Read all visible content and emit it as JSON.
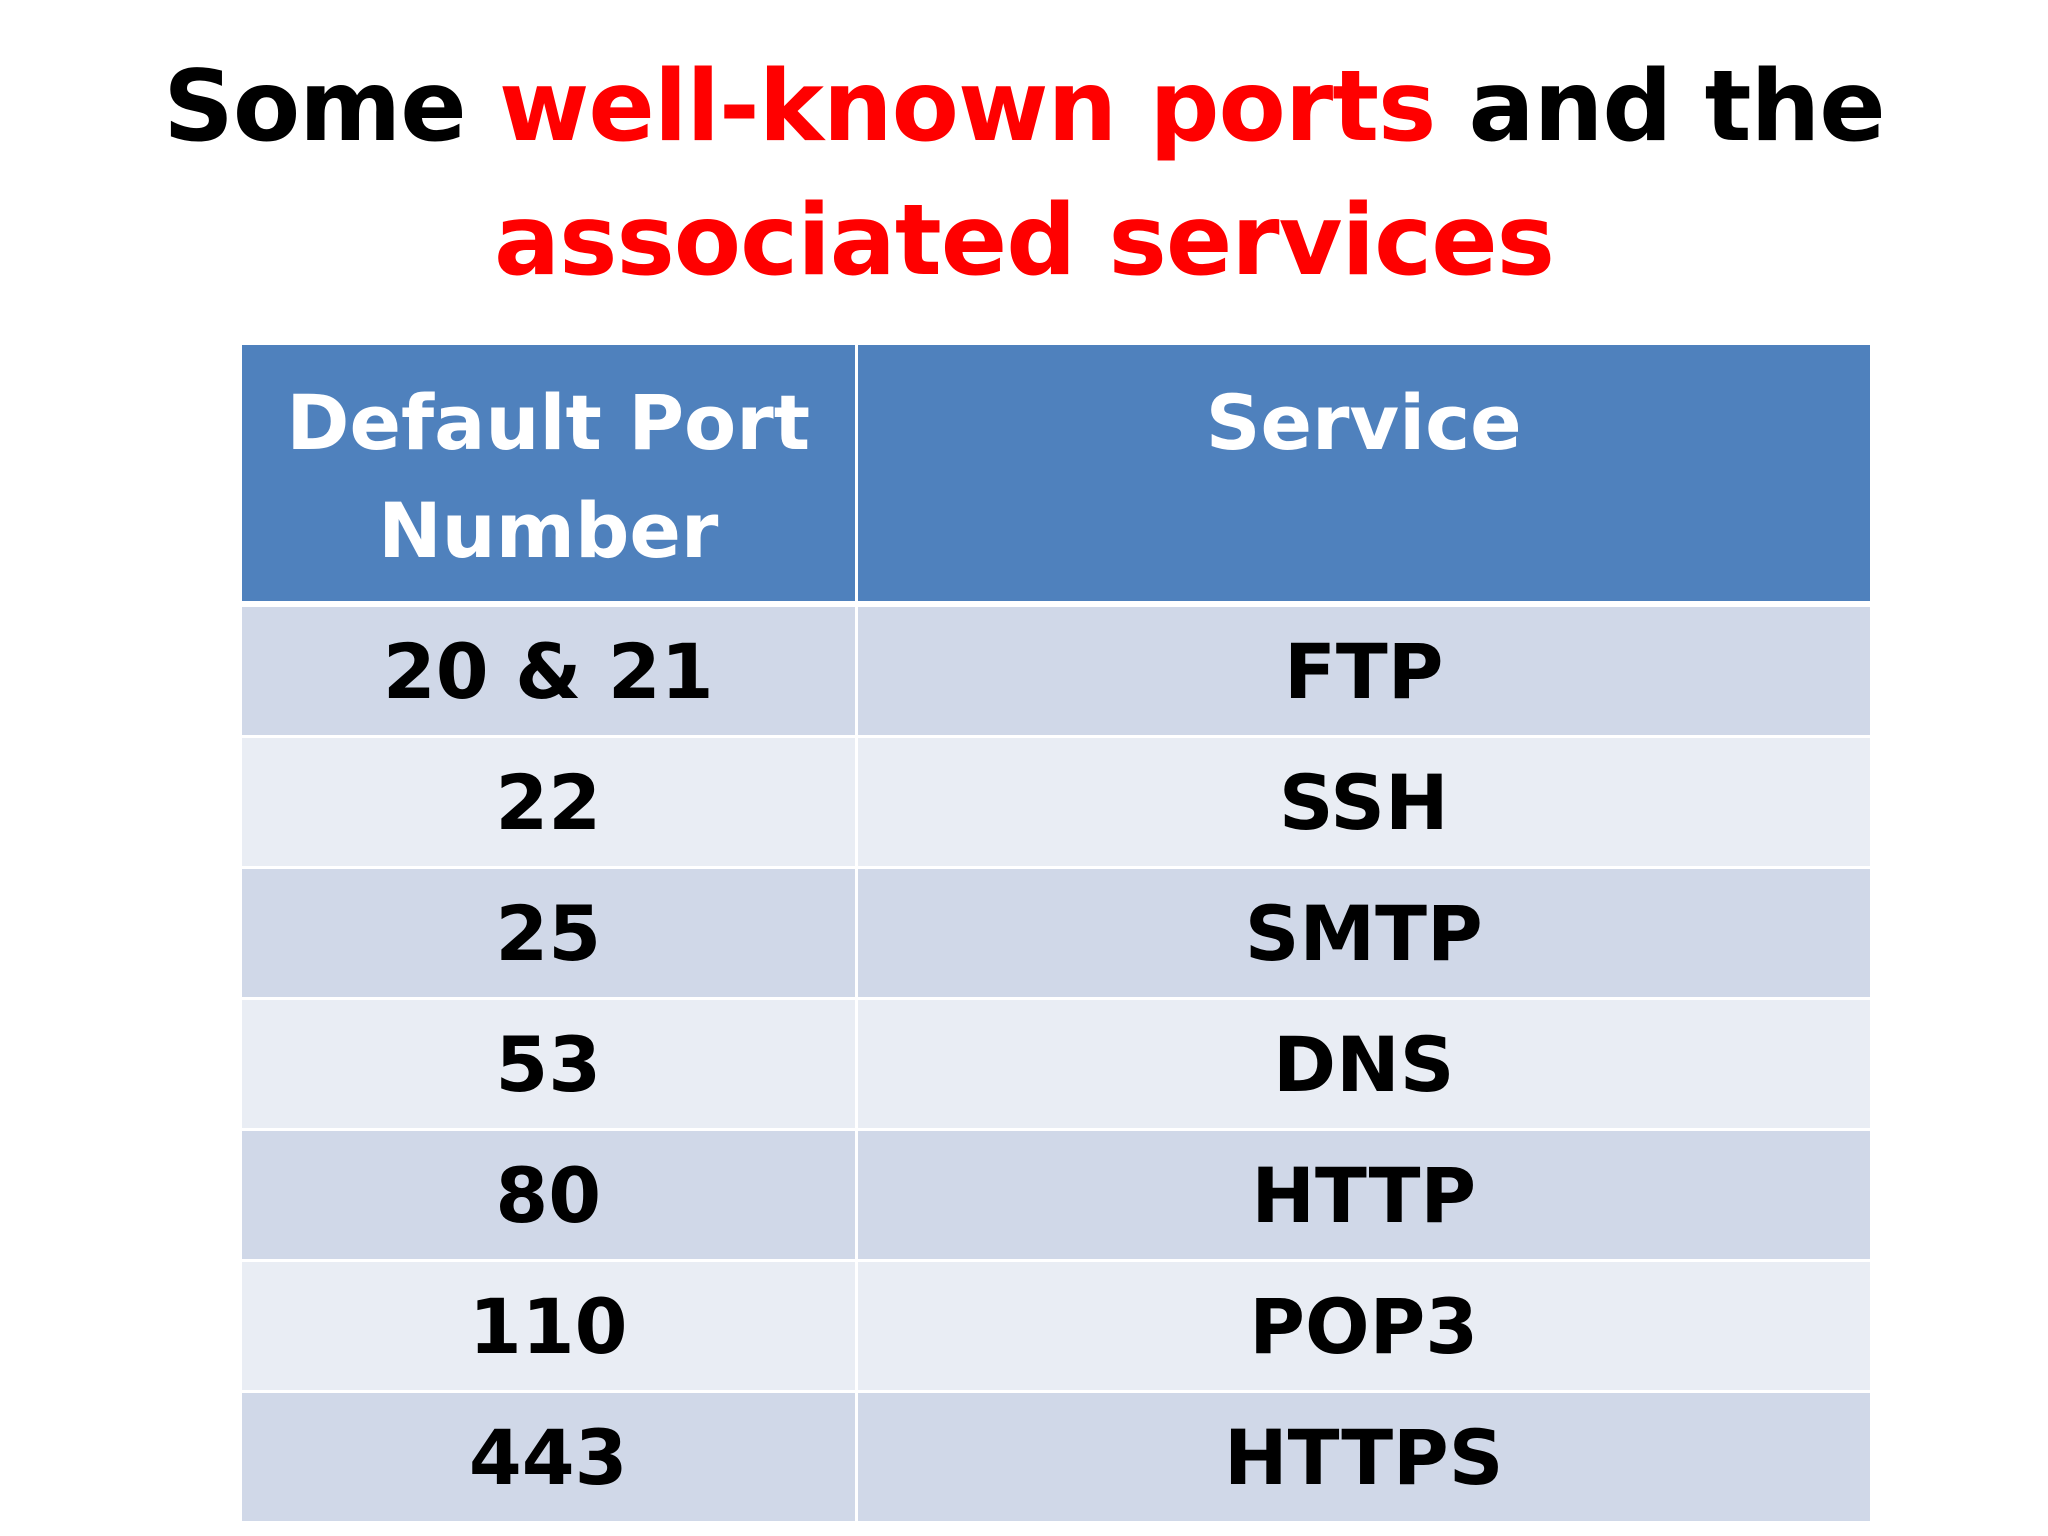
{
  "title": {
    "line1_part1": "Some ",
    "line1_accent": "well-known ports",
    "line1_part2": " and the",
    "line2_accent": "associated services"
  },
  "colors": {
    "accent": "#ff0000",
    "header_bg": "#4f81bd",
    "row_odd_bg": "#d0d8e8",
    "row_even_bg": "#e9edf4"
  },
  "table": {
    "headers": {
      "port_line1": "Default Port",
      "port_line2": "Number",
      "service": "Service"
    },
    "rows": [
      {
        "port": "20 & 21",
        "service": "FTP"
      },
      {
        "port": "22",
        "service": "SSH"
      },
      {
        "port": "25",
        "service": "SMTP"
      },
      {
        "port": "53",
        "service": "DNS"
      },
      {
        "port": "80",
        "service": "HTTP"
      },
      {
        "port": "110",
        "service": "POP3"
      },
      {
        "port": "443",
        "service": "HTTPS"
      }
    ]
  }
}
